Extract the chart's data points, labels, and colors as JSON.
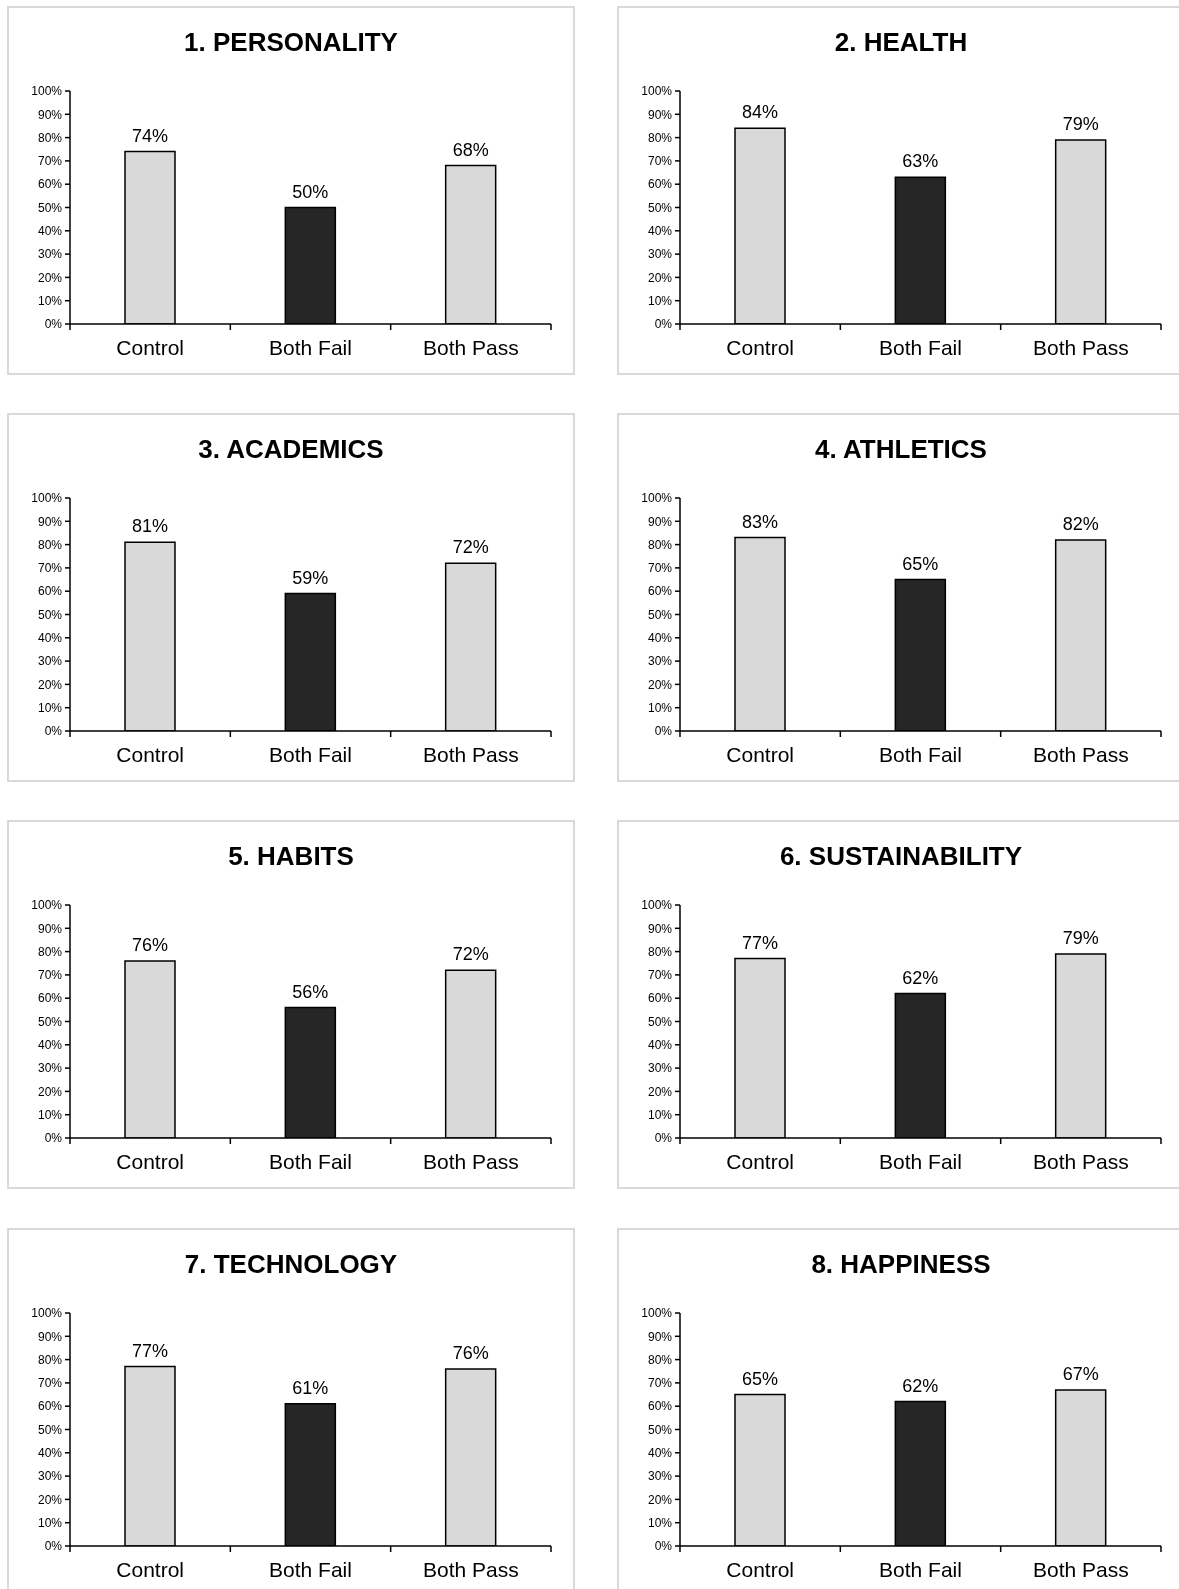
{
  "chart_data": [
    {
      "type": "bar",
      "title": "1. PERSONALITY",
      "categories": [
        "Control",
        "Both Fail",
        "Both Pass"
      ],
      "values": [
        74,
        50,
        68
      ],
      "colors": [
        "#d9d9d9",
        "#262626",
        "#d9d9d9"
      ],
      "value_labels": [
        "74%",
        "50%",
        "68%"
      ],
      "ylim": [
        0,
        100
      ],
      "yticks": [
        {
          "value": 0,
          "label": "0%"
        },
        {
          "value": 10,
          "label": "10%"
        },
        {
          "value": 20,
          "label": "20%"
        },
        {
          "value": 30,
          "label": "30%"
        },
        {
          "value": 40,
          "label": "40%"
        },
        {
          "value": 50,
          "label": "50%"
        },
        {
          "value": 60,
          "label": "60%"
        },
        {
          "value": 70,
          "label": "70%"
        },
        {
          "value": 80,
          "label": "80%"
        },
        {
          "value": 90,
          "label": "90%"
        },
        {
          "value": 100,
          "label": "100%"
        }
      ]
    },
    {
      "type": "bar",
      "title": "2. HEALTH",
      "categories": [
        "Control",
        "Both Fail",
        "Both Pass"
      ],
      "values": [
        84,
        63,
        79
      ],
      "colors": [
        "#d9d9d9",
        "#262626",
        "#d9d9d9"
      ],
      "value_labels": [
        "84%",
        "63%",
        "79%"
      ],
      "ylim": [
        0,
        100
      ],
      "yticks": [
        {
          "value": 0,
          "label": "0%"
        },
        {
          "value": 10,
          "label": "10%"
        },
        {
          "value": 20,
          "label": "20%"
        },
        {
          "value": 30,
          "label": "30%"
        },
        {
          "value": 40,
          "label": "40%"
        },
        {
          "value": 50,
          "label": "50%"
        },
        {
          "value": 60,
          "label": "60%"
        },
        {
          "value": 70,
          "label": "70%"
        },
        {
          "value": 80,
          "label": "80%"
        },
        {
          "value": 90,
          "label": "90%"
        },
        {
          "value": 100,
          "label": "100%"
        }
      ]
    },
    {
      "type": "bar",
      "title": "3. ACADEMICS",
      "categories": [
        "Control",
        "Both Fail",
        "Both Pass"
      ],
      "values": [
        81,
        59,
        72
      ],
      "colors": [
        "#d9d9d9",
        "#262626",
        "#d9d9d9"
      ],
      "value_labels": [
        "81%",
        "59%",
        "72%"
      ],
      "ylim": [
        0,
        100
      ],
      "yticks": [
        {
          "value": 0,
          "label": "0%"
        },
        {
          "value": 10,
          "label": "10%"
        },
        {
          "value": 20,
          "label": "20%"
        },
        {
          "value": 30,
          "label": "30%"
        },
        {
          "value": 40,
          "label": "40%"
        },
        {
          "value": 50,
          "label": "50%"
        },
        {
          "value": 60,
          "label": "60%"
        },
        {
          "value": 70,
          "label": "70%"
        },
        {
          "value": 80,
          "label": "80%"
        },
        {
          "value": 90,
          "label": "90%"
        },
        {
          "value": 100,
          "label": "100%"
        }
      ]
    },
    {
      "type": "bar",
      "title": "4. ATHLETICS",
      "categories": [
        "Control",
        "Both Fail",
        "Both Pass"
      ],
      "values": [
        83,
        65,
        82
      ],
      "colors": [
        "#d9d9d9",
        "#262626",
        "#d9d9d9"
      ],
      "value_labels": [
        "83%",
        "65%",
        "82%"
      ],
      "ylim": [
        0,
        100
      ],
      "yticks": [
        {
          "value": 0,
          "label": "0%"
        },
        {
          "value": 10,
          "label": "10%"
        },
        {
          "value": 20,
          "label": "20%"
        },
        {
          "value": 30,
          "label": "30%"
        },
        {
          "value": 40,
          "label": "40%"
        },
        {
          "value": 50,
          "label": "50%"
        },
        {
          "value": 60,
          "label": "60%"
        },
        {
          "value": 70,
          "label": "70%"
        },
        {
          "value": 80,
          "label": "80%"
        },
        {
          "value": 90,
          "label": "90%"
        },
        {
          "value": 100,
          "label": "100%"
        }
      ]
    },
    {
      "type": "bar",
      "title": "5. HABITS",
      "categories": [
        "Control",
        "Both Fail",
        "Both Pass"
      ],
      "values": [
        76,
        56,
        72
      ],
      "colors": [
        "#d9d9d9",
        "#262626",
        "#d9d9d9"
      ],
      "value_labels": [
        "76%",
        "56%",
        "72%"
      ],
      "ylim": [
        0,
        100
      ],
      "yticks": [
        {
          "value": 0,
          "label": "0%"
        },
        {
          "value": 10,
          "label": "10%"
        },
        {
          "value": 20,
          "label": "20%"
        },
        {
          "value": 30,
          "label": "30%"
        },
        {
          "value": 40,
          "label": "40%"
        },
        {
          "value": 50,
          "label": "50%"
        },
        {
          "value": 60,
          "label": "60%"
        },
        {
          "value": 70,
          "label": "70%"
        },
        {
          "value": 80,
          "label": "80%"
        },
        {
          "value": 90,
          "label": "90%"
        },
        {
          "value": 100,
          "label": "100%"
        }
      ]
    },
    {
      "type": "bar",
      "title": "6. SUSTAINABILITY",
      "categories": [
        "Control",
        "Both Fail",
        "Both Pass"
      ],
      "values": [
        77,
        62,
        79
      ],
      "colors": [
        "#d9d9d9",
        "#262626",
        "#d9d9d9"
      ],
      "value_labels": [
        "77%",
        "62%",
        "79%"
      ],
      "ylim": [
        0,
        100
      ],
      "yticks": [
        {
          "value": 0,
          "label": "0%"
        },
        {
          "value": 10,
          "label": "10%"
        },
        {
          "value": 20,
          "label": "20%"
        },
        {
          "value": 30,
          "label": "30%"
        },
        {
          "value": 40,
          "label": "40%"
        },
        {
          "value": 50,
          "label": "50%"
        },
        {
          "value": 60,
          "label": "60%"
        },
        {
          "value": 70,
          "label": "70%"
        },
        {
          "value": 80,
          "label": "80%"
        },
        {
          "value": 90,
          "label": "90%"
        },
        {
          "value": 100,
          "label": "100%"
        }
      ]
    },
    {
      "type": "bar",
      "title": "7. TECHNOLOGY",
      "categories": [
        "Control",
        "Both Fail",
        "Both Pass"
      ],
      "values": [
        77,
        61,
        76
      ],
      "colors": [
        "#d9d9d9",
        "#262626",
        "#d9d9d9"
      ],
      "value_labels": [
        "77%",
        "61%",
        "76%"
      ],
      "ylim": [
        0,
        100
      ],
      "yticks": [
        {
          "value": 0,
          "label": "0%"
        },
        {
          "value": 10,
          "label": "10%"
        },
        {
          "value": 20,
          "label": "20%"
        },
        {
          "value": 30,
          "label": "30%"
        },
        {
          "value": 40,
          "label": "40%"
        },
        {
          "value": 50,
          "label": "50%"
        },
        {
          "value": 60,
          "label": "60%"
        },
        {
          "value": 70,
          "label": "70%"
        },
        {
          "value": 80,
          "label": "80%"
        },
        {
          "value": 90,
          "label": "90%"
        },
        {
          "value": 100,
          "label": "100%"
        }
      ]
    },
    {
      "type": "bar",
      "title": "8. HAPPINESS",
      "categories": [
        "Control",
        "Both Fail",
        "Both Pass"
      ],
      "values": [
        65,
        62,
        67
      ],
      "colors": [
        "#d9d9d9",
        "#262626",
        "#d9d9d9"
      ],
      "value_labels": [
        "65%",
        "62%",
        "67%"
      ],
      "ylim": [
        0,
        100
      ],
      "yticks": [
        {
          "value": 0,
          "label": "0%"
        },
        {
          "value": 10,
          "label": "10%"
        },
        {
          "value": 20,
          "label": "20%"
        },
        {
          "value": 30,
          "label": "30%"
        },
        {
          "value": 40,
          "label": "40%"
        },
        {
          "value": 50,
          "label": "50%"
        },
        {
          "value": 60,
          "label": "60%"
        },
        {
          "value": 70,
          "label": "70%"
        },
        {
          "value": 80,
          "label": "80%"
        },
        {
          "value": 90,
          "label": "90%"
        },
        {
          "value": 100,
          "label": "100%"
        }
      ]
    }
  ]
}
